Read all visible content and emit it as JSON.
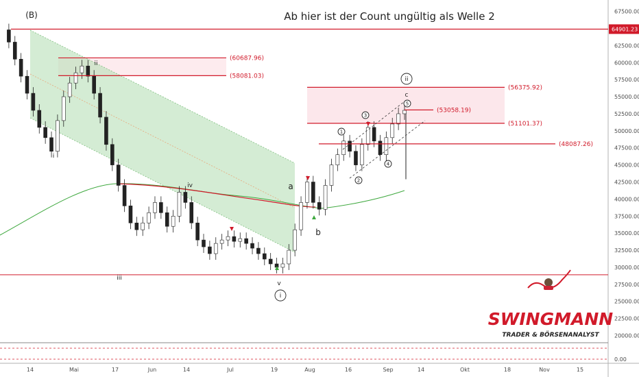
{
  "chart_data": {
    "type": "candlestick",
    "title": "Ab hier ist der Count ungültig als Welle 2",
    "ylim": [
      16500,
      69500
    ],
    "y_ticks": [
      67500,
      65000,
      62500,
      60000,
      57500,
      55000,
      52500,
      50000,
      47500,
      45000,
      42500,
      40000,
      37500,
      35000,
      32500,
      30000,
      27500,
      25000,
      22500,
      20000
    ],
    "y_tick_labels": [
      "67500.00",
      "65000.00",
      "62500.00",
      "60000.00",
      "57500.00",
      "55000.00",
      "52500.00",
      "50000.00",
      "47500.00",
      "45000.00",
      "42500.00",
      "40000.00",
      "37500.00",
      "35000.00",
      "32500.00",
      "30000.00",
      "27500.00",
      "25000.00",
      "22500.00",
      "20000.00"
    ],
    "x_ticks": [
      "14",
      "Mai",
      "17",
      "Jun",
      "14",
      "Jul",
      "19",
      "Aug",
      "16",
      "Sep",
      "14",
      "Okt",
      "18",
      "Nov",
      "15"
    ],
    "current_price": {
      "value": 64901.23,
      "label": "64901.23",
      "color": "#d11a2a"
    },
    "levels": [
      {
        "label": "(60687.96)",
        "value": 60687.96
      },
      {
        "label": "(58081.03)",
        "value": 58081.03
      },
      {
        "label": "(56375.92)",
        "value": 56375.92
      },
      {
        "label": "(53058.19)",
        "value": 53058.19
      },
      {
        "label": "(51101.37)",
        "value": 51101.37
      },
      {
        "label": "(48087.26)",
        "value": 48087.26
      }
    ],
    "support_level": 28900,
    "wave_labels": {
      "B": "(B)",
      "i": "i",
      "ii": "ii",
      "iii": "iii",
      "iv": "iv",
      "v": "v",
      "a": "a",
      "b": "b",
      "c": "c",
      "circ_i": "i",
      "circ_ii": "ii",
      "sub1": "1",
      "sub2": "2",
      "sub3": "3",
      "sub4": "4",
      "sub5": "5"
    },
    "price_path": [
      64800,
      63000,
      60500,
      58000,
      55500,
      53000,
      50500,
      49000,
      47000,
      51500,
      55000,
      57000,
      58500,
      59500,
      58000,
      55500,
      52000,
      48000,
      45000,
      42000,
      39000,
      36500,
      35500,
      36500,
      38000,
      39500,
      38000,
      36000,
      37500,
      41000,
      39500,
      36500,
      34000,
      33000,
      32000,
      33500,
      34000,
      34500,
      33800,
      34200,
      33500,
      32800,
      32000,
      31200,
      30500,
      30000,
      30500,
      32500,
      35500,
      39500,
      42500,
      39500,
      38500,
      42000,
      45000,
      46500,
      48500,
      47000,
      45000,
      48000,
      50500,
      48500,
      46500,
      49000,
      51000,
      52500,
      53000
    ],
    "panel_values": {
      "zero_label": "0.00"
    },
    "series": [
      {
        "name": "",
        "color": "#3ea83e"
      },
      {
        "name": "",
        "color": "#e0343a"
      }
    ],
    "legend": "none",
    "grid": false
  },
  "branding": {
    "logo_text": "SWINGMANN",
    "tagline": "TRADER & BÖRSENANALYST"
  },
  "colors": {
    "red": "#d11a2a",
    "green": "#3ea83e",
    "channel_fill": "#b8e0b8",
    "zone_fill": "#fbdde2"
  }
}
